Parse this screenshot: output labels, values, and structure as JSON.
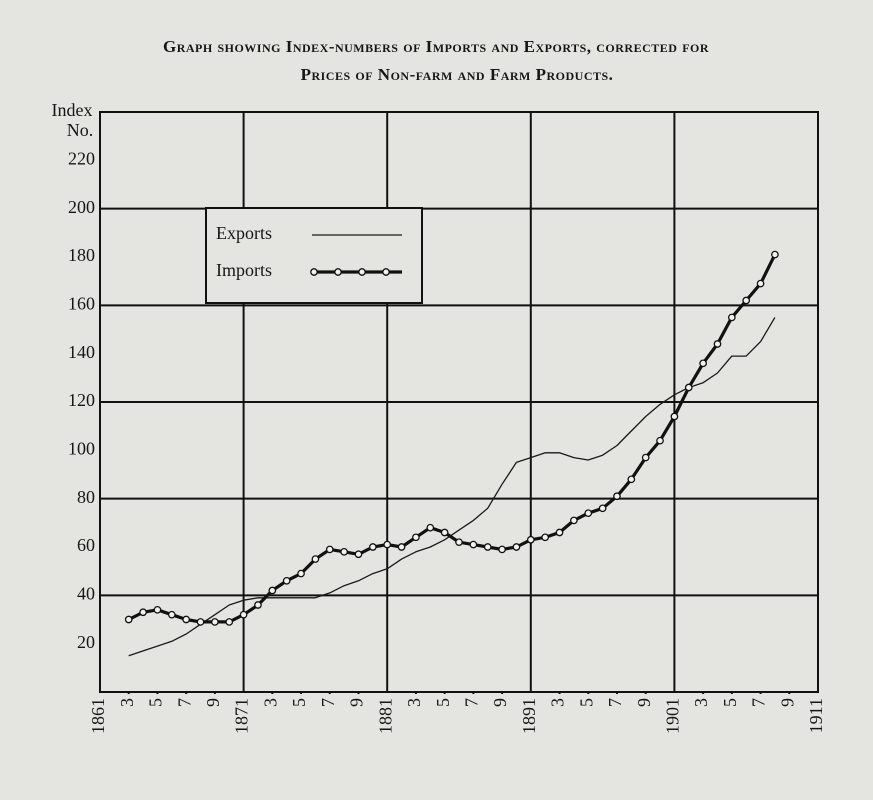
{
  "chart_data": {
    "type": "line",
    "title": [
      "Graph showing Index-numbers of Imports and Exports, corrected for",
      "Prices of Non-farm and Farm Products."
    ],
    "ylabel": [
      "Index",
      "No."
    ],
    "x": [
      1863,
      1864,
      1865,
      1866,
      1867,
      1868,
      1869,
      1870,
      1871,
      1872,
      1873,
      1874,
      1875,
      1876,
      1877,
      1878,
      1879,
      1880,
      1881,
      1882,
      1883,
      1884,
      1885,
      1886,
      1887,
      1888,
      1889,
      1890,
      1891,
      1892,
      1893,
      1894,
      1895,
      1896,
      1897,
      1898,
      1899,
      1900,
      1901,
      1902,
      1903,
      1904,
      1905,
      1906,
      1907,
      1908
    ],
    "series": [
      {
        "name": "Exports",
        "color": "#1a1a1a",
        "width": 1.3,
        "markers": false,
        "values": [
          15,
          17,
          19,
          21,
          24,
          28,
          32,
          36,
          38,
          39,
          39,
          39,
          39,
          39,
          41,
          44,
          46,
          49,
          51,
          55,
          58,
          60,
          63,
          67,
          71,
          76,
          86,
          95,
          97,
          99,
          99,
          97,
          96,
          98,
          102,
          108,
          114,
          119,
          123,
          126,
          128,
          132,
          139,
          139,
          145,
          155
        ]
      },
      {
        "name": "Imports",
        "color": "#111111",
        "width": 3.2,
        "markers": true,
        "values": [
          30,
          33,
          34,
          32,
          30,
          29,
          29,
          29,
          32,
          36,
          42,
          46,
          49,
          55,
          59,
          58,
          57,
          60,
          61,
          60,
          64,
          68,
          66,
          62,
          61,
          60,
          59,
          60,
          63,
          64,
          66,
          71,
          74,
          76,
          81,
          88,
          97,
          104,
          114,
          126,
          136,
          144,
          155,
          162,
          169,
          181
        ]
      }
    ],
    "xlim": [
      1861,
      1911
    ],
    "xticks": [
      1861,
      {
        "value": 1863,
        "label": "3"
      },
      {
        "value": 1865,
        "label": "5"
      },
      {
        "value": 1867,
        "label": "7"
      },
      {
        "value": 1869,
        "label": "9"
      },
      1871,
      {
        "value": 1873,
        "label": "3"
      },
      {
        "value": 1875,
        "label": "5"
      },
      {
        "value": 1877,
        "label": "7"
      },
      {
        "value": 1879,
        "label": "9"
      },
      1881,
      {
        "value": 1883,
        "label": "3"
      },
      {
        "value": 1885,
        "label": "5"
      },
      {
        "value": 1887,
        "label": "7"
      },
      {
        "value": 1889,
        "label": "9"
      },
      1891,
      {
        "value": 1893,
        "label": "3"
      },
      {
        "value": 1895,
        "label": "5"
      },
      {
        "value": 1897,
        "label": "7"
      },
      {
        "value": 1899,
        "label": "9"
      },
      1901,
      {
        "value": 1903,
        "label": "3"
      },
      {
        "value": 1905,
        "label": "5"
      },
      {
        "value": 1907,
        "label": "7"
      },
      {
        "value": 1909,
        "label": "9"
      },
      1911
    ],
    "ylim": [
      0,
      240
    ],
    "yticks": [
      20,
      40,
      60,
      80,
      100,
      120,
      140,
      160,
      180,
      200,
      220
    ],
    "ygrid": [
      40,
      80,
      120,
      160,
      200
    ],
    "legend": "upper left"
  }
}
